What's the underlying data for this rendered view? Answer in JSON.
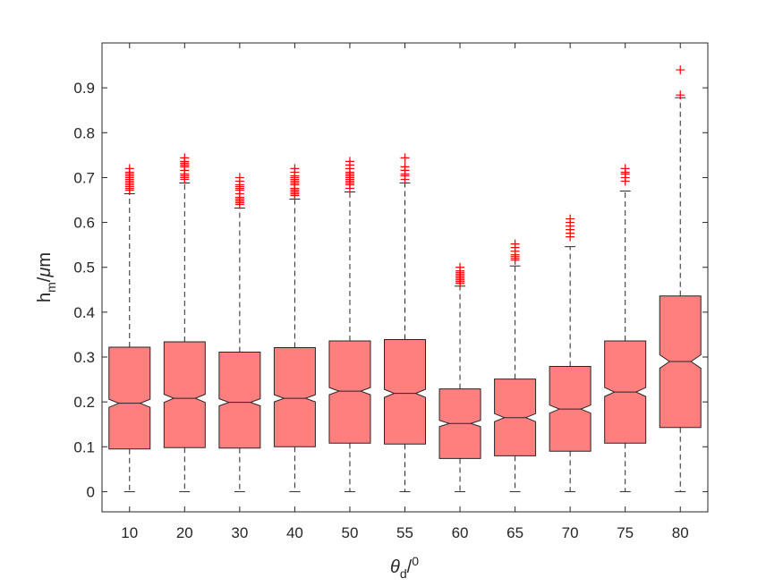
{
  "chart_data": {
    "type": "boxplot",
    "notched": true,
    "box_color": "#ff7f7f",
    "outlier_color": "#ff0000",
    "outlier_marker": "+",
    "xlabel": {
      "base": "θ",
      "sub": "d",
      "sep": "/",
      "sup": "0"
    },
    "ylabel": {
      "base": "h",
      "sub": "m",
      "sep": "/",
      "unit_greek": "μ",
      "unit": "m"
    },
    "ylim": [
      -0.045,
      1.0
    ],
    "yticks": [
      0,
      0.1,
      0.2,
      0.3,
      0.4,
      0.5,
      0.6,
      0.7,
      0.8,
      0.9
    ],
    "ytick_labels": [
      "0",
      "0.1",
      "0.2",
      "0.3",
      "0.4",
      "0.5",
      "0.6",
      "0.7",
      "0.8",
      "0.9"
    ],
    "grid": false,
    "categories": [
      "10",
      "20",
      "30",
      "40",
      "50",
      "55",
      "60",
      "65",
      "70",
      "75",
      "80"
    ],
    "boxes": [
      {
        "category": "10",
        "min": 0.0,
        "q1": 0.095,
        "median": 0.197,
        "q3": 0.322,
        "max": 0.664,
        "notch_low": 0.188,
        "notch_high": 0.206,
        "outliers": [
          0.672,
          0.676,
          0.68,
          0.684,
          0.688,
          0.692,
          0.696,
          0.7,
          0.704,
          0.708,
          0.712,
          0.72
        ]
      },
      {
        "category": "20",
        "min": 0.0,
        "q1": 0.098,
        "median": 0.208,
        "q3": 0.334,
        "max": 0.688,
        "notch_low": 0.199,
        "notch_high": 0.217,
        "outliers": [
          0.696,
          0.7,
          0.704,
          0.708,
          0.716,
          0.724,
          0.728,
          0.732,
          0.736,
          0.744
        ]
      },
      {
        "category": "30",
        "min": 0.0,
        "q1": 0.097,
        "median": 0.199,
        "q3": 0.311,
        "max": 0.632,
        "notch_low": 0.191,
        "notch_high": 0.207,
        "outliers": [
          0.64,
          0.644,
          0.648,
          0.652,
          0.656,
          0.664,
          0.672,
          0.676,
          0.68,
          0.684,
          0.692,
          0.7
        ]
      },
      {
        "category": "40",
        "min": 0.0,
        "q1": 0.1,
        "median": 0.208,
        "q3": 0.321,
        "max": 0.652,
        "notch_low": 0.2,
        "notch_high": 0.216,
        "outliers": [
          0.66,
          0.664,
          0.668,
          0.672,
          0.676,
          0.684,
          0.688,
          0.692,
          0.696,
          0.7,
          0.704,
          0.712,
          0.72
        ]
      },
      {
        "category": "50",
        "min": 0.0,
        "q1": 0.108,
        "median": 0.224,
        "q3": 0.336,
        "max": 0.668,
        "notch_low": 0.216,
        "notch_high": 0.232,
        "outliers": [
          0.676,
          0.684,
          0.688,
          0.692,
          0.696,
          0.7,
          0.704,
          0.708,
          0.712,
          0.72,
          0.728,
          0.736
        ]
      },
      {
        "category": "55",
        "min": 0.0,
        "q1": 0.106,
        "median": 0.219,
        "q3": 0.339,
        "max": 0.688,
        "notch_low": 0.21,
        "notch_high": 0.228,
        "outliers": [
          0.696,
          0.704,
          0.708,
          0.716,
          0.724,
          0.744
        ]
      },
      {
        "category": "60",
        "min": 0.0,
        "q1": 0.074,
        "median": 0.152,
        "q3": 0.229,
        "max": 0.458,
        "notch_low": 0.145,
        "notch_high": 0.159,
        "outliers": [
          0.464,
          0.468,
          0.472,
          0.476,
          0.48,
          0.484,
          0.488,
          0.492,
          0.5
        ]
      },
      {
        "category": "65",
        "min": 0.0,
        "q1": 0.08,
        "median": 0.165,
        "q3": 0.251,
        "max": 0.503,
        "notch_low": 0.156,
        "notch_high": 0.174,
        "outliers": [
          0.516,
          0.52,
          0.524,
          0.528,
          0.536,
          0.544,
          0.552
        ]
      },
      {
        "category": "70",
        "min": 0.0,
        "q1": 0.09,
        "median": 0.184,
        "q3": 0.279,
        "max": 0.546,
        "notch_low": 0.175,
        "notch_high": 0.193,
        "outliers": [
          0.568,
          0.576,
          0.584,
          0.592,
          0.6,
          0.608
        ]
      },
      {
        "category": "75",
        "min": 0.0,
        "q1": 0.108,
        "median": 0.222,
        "q3": 0.336,
        "max": 0.67,
        "notch_low": 0.212,
        "notch_high": 0.232,
        "outliers": [
          0.692,
          0.7,
          0.708,
          0.712,
          0.72
        ]
      },
      {
        "category": "80",
        "min": 0.0,
        "q1": 0.143,
        "median": 0.29,
        "q3": 0.436,
        "max": 0.878,
        "notch_low": 0.275,
        "notch_high": 0.305,
        "outliers": [
          0.884,
          0.94
        ]
      }
    ]
  }
}
